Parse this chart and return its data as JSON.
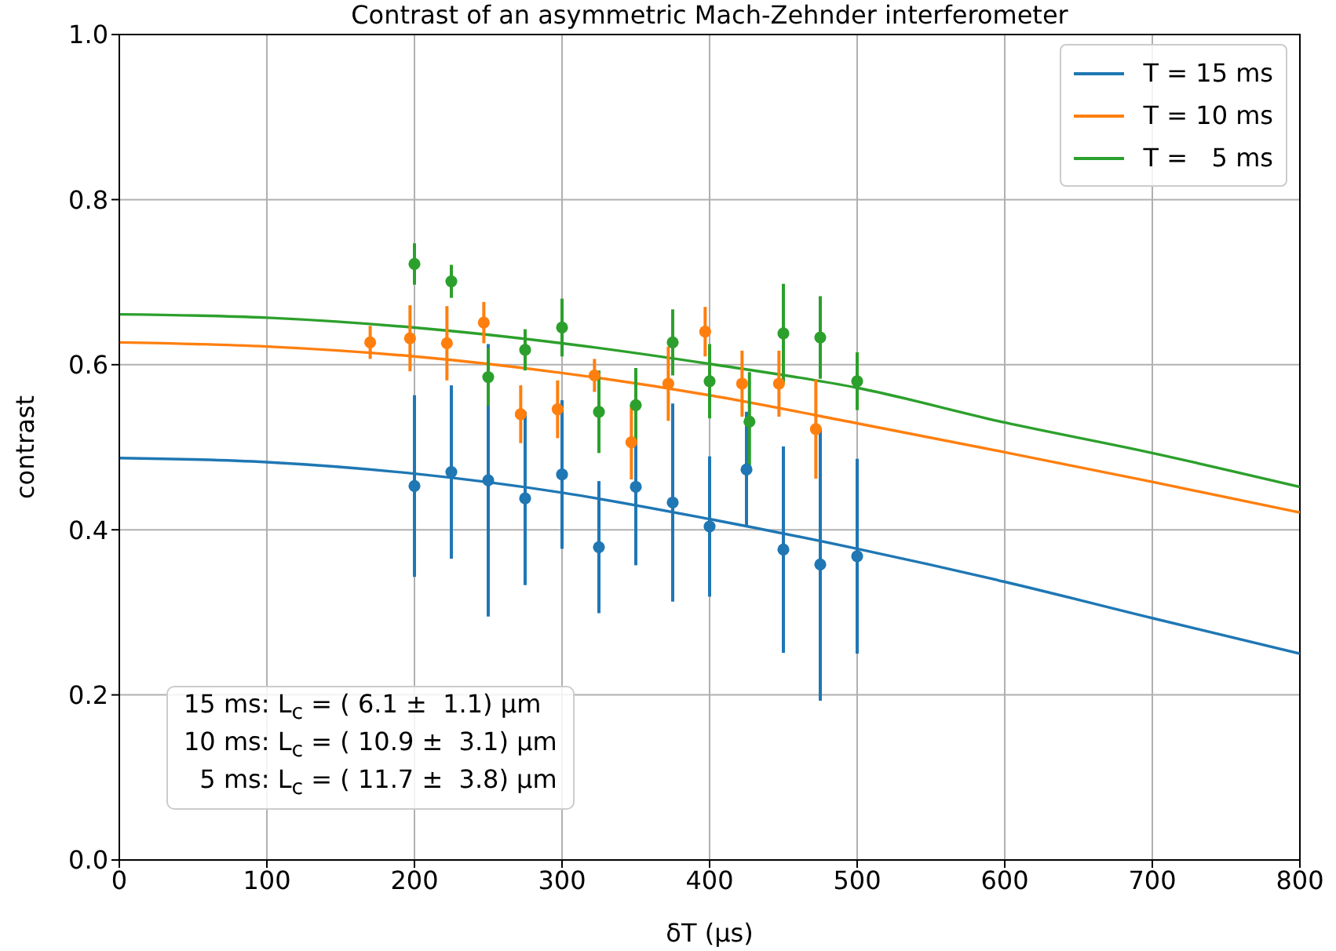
{
  "chart_data": {
    "type": "scatter",
    "title": "Contrast of an asymmetric Mach-Zehnder interferometer",
    "xlabel": "δT (μs)",
    "ylabel": "contrast",
    "xlim": [
      0,
      800
    ],
    "xticks": [
      0,
      100,
      200,
      300,
      400,
      500,
      600,
      700,
      800
    ],
    "ylim": [
      0,
      1
    ],
    "yticks": [
      {
        "value": 0,
        "label": "0.0"
      },
      0.2,
      0.4,
      0.6,
      0.8,
      {
        "value": 1,
        "label": "1.0"
      }
    ],
    "grid": true,
    "legend": "top right",
    "marker": "circle",
    "annotations": [
      "15 ms: L$_{c}$ = ( 6.1 ±  1.1) μm",
      "10 ms: L$_{c}$ = ( 10.9 ±  3.1) μm",
      "  5 ms: L$_{c}$ = ( 11.7 ±  3.8) μm"
    ],
    "series": [
      {
        "name": "T = 15 ms",
        "type": "line",
        "marker": "none",
        "color": "#1f77b4",
        "x": [
          0,
          100,
          200,
          300,
          400,
          500,
          600,
          700,
          800
        ],
        "values": [
          0.487,
          0.482,
          0.468,
          0.445,
          0.413,
          0.377,
          0.337,
          0.293,
          0.25
        ]
      },
      {
        "name": "T = 10 ms",
        "type": "line",
        "marker": "none",
        "color": "#ff7f0e",
        "x": [
          0,
          100,
          200,
          300,
          400,
          500,
          600,
          700,
          800
        ],
        "values": [
          0.627,
          0.622,
          0.61,
          0.59,
          0.563,
          0.529,
          0.494,
          0.458,
          0.421
        ]
      },
      {
        "name": "T =   5 ms",
        "type": "line",
        "marker": "none",
        "color": "#2ca02c",
        "x": [
          0,
          100,
          200,
          300,
          400,
          500,
          600,
          700,
          800
        ],
        "values": [
          0.661,
          0.657,
          0.645,
          0.626,
          0.601,
          0.572,
          0.53,
          0.493,
          0.452
        ]
      },
      {
        "color": "#1f77b4",
        "x": [
          200,
          225,
          250,
          275,
          300,
          325,
          350,
          375,
          400,
          425,
          450,
          475,
          500
        ],
        "values": [
          0.453,
          0.47,
          0.46,
          0.438,
          0.467,
          0.379,
          0.452,
          0.433,
          0.404,
          0.473,
          0.376,
          0.358,
          0.368
        ],
        "errors": [
          0.11,
          0.105,
          0.165,
          0.105,
          0.09,
          0.08,
          0.095,
          0.12,
          0.085,
          0.07,
          0.125,
          0.165,
          0.118
        ]
      },
      {
        "color": "#ff7f0e",
        "x": [
          170,
          197,
          222,
          247,
          272,
          297,
          322,
          347,
          372,
          397,
          422,
          447,
          472
        ],
        "values": [
          0.627,
          0.632,
          0.626,
          0.651,
          0.54,
          0.546,
          0.587,
          0.506,
          0.577,
          0.64,
          0.577,
          0.577,
          0.522
        ],
        "errors": [
          0.02,
          0.04,
          0.045,
          0.025,
          0.035,
          0.035,
          0.02,
          0.045,
          0.045,
          0.03,
          0.04,
          0.04,
          0.06
        ]
      },
      {
        "color": "#2ca02c",
        "x": [
          200,
          225,
          250,
          275,
          300,
          325,
          350,
          375,
          400,
          427,
          450,
          475,
          500
        ],
        "values": [
          0.722,
          0.701,
          0.585,
          0.618,
          0.645,
          0.543,
          0.551,
          0.627,
          0.58,
          0.531,
          0.638,
          0.633,
          0.58
        ],
        "errors": [
          0.025,
          0.02,
          0.035,
          0.025,
          0.035,
          0.05,
          0.045,
          0.04,
          0.045,
          0.06,
          0.06,
          0.05,
          0.035
        ]
      }
    ]
  }
}
